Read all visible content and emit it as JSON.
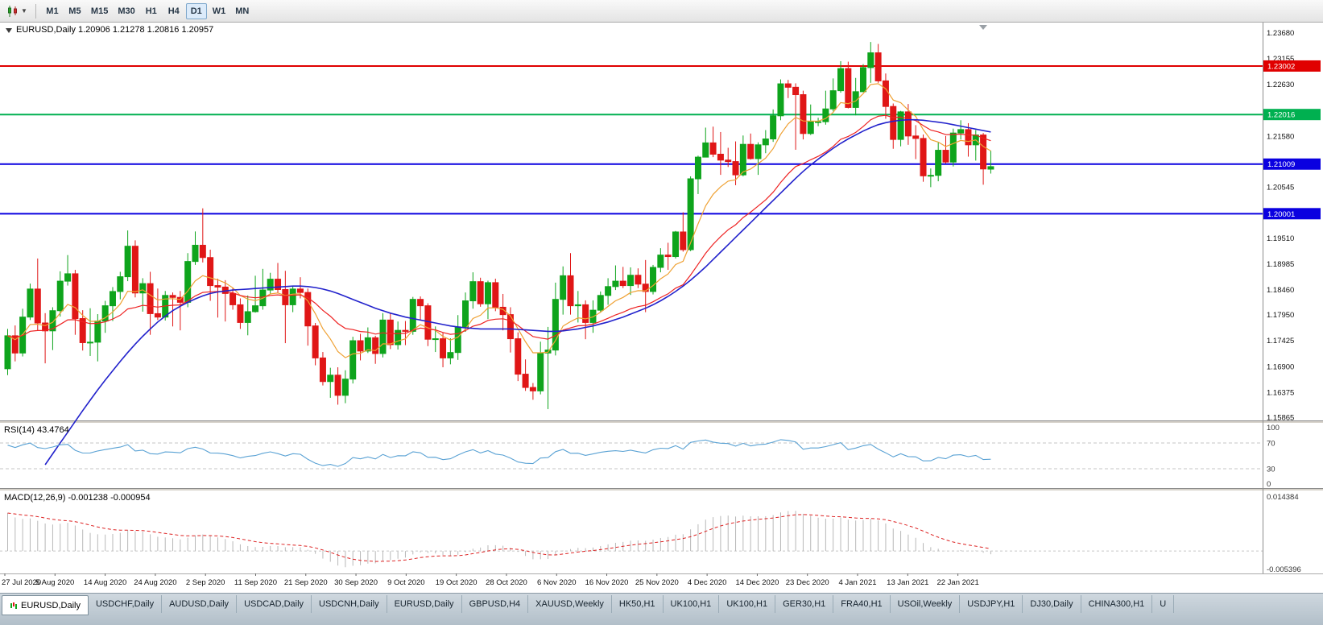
{
  "toolbar": {
    "chart_type_icon": "candlestick-chart",
    "timeframes": [
      "M1",
      "M5",
      "M15",
      "M30",
      "H1",
      "H4",
      "D1",
      "W1",
      "MN"
    ],
    "active_timeframe": "D1"
  },
  "main_chart": {
    "header": "EURUSD,Daily 1.20906 1.21278 1.20816 1.20957",
    "symbol": "EURUSD",
    "period": "Daily",
    "open": "1.20906",
    "high": "1.21278",
    "low": "1.20816",
    "close": "1.20957",
    "price_axis_labels": [
      "1.23680",
      "1.23155",
      "1.22630",
      "1.21580",
      "1.20545",
      "1.19510",
      "1.18985",
      "1.18460",
      "1.17950",
      "1.17425",
      "1.16900",
      "1.16375",
      "1.15865"
    ],
    "horizontal_lines": [
      {
        "label": "1.23002",
        "price": 1.23002,
        "color": "#e00000"
      },
      {
        "label": "1.22016",
        "price": 1.22016,
        "color": "#00b050"
      },
      {
        "label": "1.21009",
        "price": 1.21009,
        "color": "#0a00e0"
      },
      {
        "label": "1.20001",
        "price": 1.20001,
        "color": "#0a00e0"
      }
    ]
  },
  "rsi_panel": {
    "header": "RSI(14) 43.4764",
    "indicator": "RSI",
    "period": 14,
    "value": "43.4764",
    "axis_labels": [
      "100",
      "70",
      "30",
      "0"
    ],
    "levels": [
      70,
      30
    ],
    "line_color": "#5aa2d4"
  },
  "macd_panel": {
    "header": "MACD(12,26,9) -0.001238 -0.000954",
    "indicator": "MACD",
    "params": "12,26,9",
    "values": [
      "-0.001238",
      "-0.000954"
    ],
    "axis_max": "0.014384",
    "axis_min": "-0.005396"
  },
  "date_axis": [
    "27 Jul 2020",
    "5 Aug 2020",
    "14 Aug 2020",
    "24 Aug 2020",
    "2 Sep 2020",
    "11 Sep 2020",
    "21 Sep 2020",
    "30 Sep 2020",
    "9 Oct 2020",
    "19 Oct 2020",
    "28 Oct 2020",
    "6 Nov 2020",
    "16 Nov 2020",
    "25 Nov 2020",
    "4 Dec 2020",
    "14 Dec 2020",
    "23 Dec 2020",
    "4 Jan 2021",
    "13 Jan 2021",
    "22 Jan 2021"
  ],
  "chart_tabs": {
    "active_index": 0,
    "tabs": [
      "EURUSD,Daily",
      "USDCHF,Daily",
      "AUDUSD,Daily",
      "USDCAD,Daily",
      "USDCNH,Daily",
      "EURUSD,Daily",
      "GBPUSD,H4",
      "XAUUSD,Weekly",
      "HK50,H1",
      "UK100,H1",
      "UK100,H1",
      "GER30,H1",
      "FRA40,H1",
      "USOil,Weekly",
      "USDJPY,H1",
      "DJ30,Daily",
      "CHINA300,H1",
      "U"
    ]
  },
  "colors": {
    "bull": "#0ea41c",
    "bear": "#e01616",
    "ma_fast": "#efa133",
    "ma_mid": "#ee2222",
    "ma_slow": "#2222cc",
    "rsi_line": "#5aa2d4",
    "macd_hist": "#b8b8b8",
    "macd_signal": "#dd2222",
    "hline_red": "#e00000",
    "hline_green": "#00b050",
    "hline_blue": "#0a00e0"
  },
  "chart_data": {
    "type": "candlestick",
    "title": "EURUSD Daily",
    "price_axis_top": 1.23885,
    "price_axis_bottom": 1.158,
    "macd_axis_max": 0.014384,
    "macd_axis_min": -0.005396,
    "ohlc": [
      [
        1.1685,
        1.1766,
        1.1672,
        1.1752
      ],
      [
        1.1752,
        1.1773,
        1.17,
        1.1717
      ],
      [
        1.1717,
        1.1807,
        1.171,
        1.179
      ],
      [
        1.179,
        1.1858,
        1.1784,
        1.1847
      ],
      [
        1.1847,
        1.1909,
        1.1762,
        1.1778
      ],
      [
        1.1778,
        1.1798,
        1.1696,
        1.1762
      ],
      [
        1.1762,
        1.181,
        1.1723,
        1.1803
      ],
      [
        1.1803,
        1.1883,
        1.1791,
        1.1863
      ],
      [
        1.1863,
        1.1916,
        1.1854,
        1.1878
      ],
      [
        1.1878,
        1.1886,
        1.1754,
        1.1787
      ],
      [
        1.1787,
        1.1804,
        1.1722,
        1.1738
      ],
      [
        1.1738,
        1.1808,
        1.1711,
        1.1739
      ],
      [
        1.1739,
        1.1796,
        1.17,
        1.1782
      ],
      [
        1.1782,
        1.1823,
        1.1758,
        1.1813
      ],
      [
        1.1813,
        1.1851,
        1.1782,
        1.1842
      ],
      [
        1.1842,
        1.1882,
        1.1826,
        1.1872
      ],
      [
        1.1872,
        1.1966,
        1.1863,
        1.1934
      ],
      [
        1.1934,
        1.1946,
        1.183,
        1.1839
      ],
      [
        1.1839,
        1.1869,
        1.1801,
        1.1858
      ],
      [
        1.1858,
        1.1882,
        1.1754,
        1.1797
      ],
      [
        1.1797,
        1.1848,
        1.1784,
        1.179
      ],
      [
        1.179,
        1.1843,
        1.1783,
        1.1834
      ],
      [
        1.1834,
        1.184,
        1.1771,
        1.183
      ],
      [
        1.183,
        1.1843,
        1.1763,
        1.182
      ],
      [
        1.182,
        1.192,
        1.181,
        1.1903
      ],
      [
        1.1903,
        1.1964,
        1.1896,
        1.1936
      ],
      [
        1.1936,
        1.2011,
        1.1901,
        1.1911
      ],
      [
        1.1911,
        1.1927,
        1.1823,
        1.1854
      ],
      [
        1.1854,
        1.1868,
        1.1789,
        1.1851
      ],
      [
        1.1851,
        1.1865,
        1.1781,
        1.1838
      ],
      [
        1.1838,
        1.185,
        1.1805,
        1.1815
      ],
      [
        1.1815,
        1.1828,
        1.1766,
        1.1779
      ],
      [
        1.1779,
        1.1834,
        1.1753,
        1.1801
      ],
      [
        1.1801,
        1.1874,
        1.1799,
        1.1813
      ],
      [
        1.1813,
        1.1888,
        1.1805,
        1.1845
      ],
      [
        1.1845,
        1.188,
        1.1836,
        1.1867
      ],
      [
        1.1867,
        1.19,
        1.1838,
        1.1846
      ],
      [
        1.1846,
        1.1884,
        1.1737,
        1.1815
      ],
      [
        1.1815,
        1.1852,
        1.18,
        1.1847
      ],
      [
        1.1847,
        1.1871,
        1.1828,
        1.184
      ],
      [
        1.184,
        1.1848,
        1.1732,
        1.1772
      ],
      [
        1.1772,
        1.1778,
        1.1692,
        1.1707
      ],
      [
        1.1707,
        1.1719,
        1.1651,
        1.1659
      ],
      [
        1.1659,
        1.1687,
        1.1626,
        1.1672
      ],
      [
        1.1672,
        1.1688,
        1.1612,
        1.1631
      ],
      [
        1.1631,
        1.1682,
        1.1615,
        1.1664
      ],
      [
        1.1664,
        1.175,
        1.1655,
        1.1742
      ],
      [
        1.1742,
        1.1756,
        1.1702,
        1.1721
      ],
      [
        1.1721,
        1.1769,
        1.1717,
        1.1748
      ],
      [
        1.1748,
        1.1752,
        1.1695,
        1.1716
      ],
      [
        1.1716,
        1.1798,
        1.1708,
        1.1784
      ],
      [
        1.1784,
        1.1798,
        1.1725,
        1.1734
      ],
      [
        1.1734,
        1.1781,
        1.1724,
        1.1763
      ],
      [
        1.1763,
        1.1782,
        1.1733,
        1.1761
      ],
      [
        1.1761,
        1.1831,
        1.1754,
        1.1826
      ],
      [
        1.1826,
        1.1832,
        1.1785,
        1.1813
      ],
      [
        1.1813,
        1.1818,
        1.1731,
        1.1745
      ],
      [
        1.1745,
        1.1771,
        1.1719,
        1.1746
      ],
      [
        1.1746,
        1.1758,
        1.1688,
        1.1707
      ],
      [
        1.1707,
        1.1747,
        1.1694,
        1.1718
      ],
      [
        1.1718,
        1.1794,
        1.1703,
        1.177
      ],
      [
        1.177,
        1.184,
        1.176,
        1.1823
      ],
      [
        1.1823,
        1.1881,
        1.1807,
        1.1862
      ],
      [
        1.1862,
        1.187,
        1.1811,
        1.1817
      ],
      [
        1.1817,
        1.1864,
        1.1786,
        1.186
      ],
      [
        1.186,
        1.1868,
        1.1802,
        1.181
      ],
      [
        1.181,
        1.1837,
        1.1763,
        1.1795
      ],
      [
        1.1795,
        1.181,
        1.1718,
        1.1746
      ],
      [
        1.1746,
        1.1759,
        1.166,
        1.1674
      ],
      [
        1.1674,
        1.1704,
        1.164,
        1.1647
      ],
      [
        1.1647,
        1.1656,
        1.1622,
        1.164
      ],
      [
        1.164,
        1.174,
        1.1633,
        1.1717
      ],
      [
        1.1717,
        1.177,
        1.1603,
        1.1723
      ],
      [
        1.1723,
        1.186,
        1.1712,
        1.1826
      ],
      [
        1.1826,
        1.1893,
        1.1795,
        1.1874
      ],
      [
        1.1874,
        1.192,
        1.1795,
        1.1813
      ],
      [
        1.1813,
        1.1843,
        1.1779,
        1.1815
      ],
      [
        1.1815,
        1.1824,
        1.1745,
        1.1779
      ],
      [
        1.1779,
        1.1824,
        1.1758,
        1.1804
      ],
      [
        1.1804,
        1.1842,
        1.1799,
        1.1834
      ],
      [
        1.1834,
        1.1869,
        1.1815,
        1.1852
      ],
      [
        1.1852,
        1.1895,
        1.1845,
        1.1863
      ],
      [
        1.1863,
        1.1892,
        1.1849,
        1.1854
      ],
      [
        1.1854,
        1.1891,
        1.1835,
        1.1875
      ],
      [
        1.1875,
        1.1889,
        1.1849,
        1.1857
      ],
      [
        1.1857,
        1.1906,
        1.18,
        1.1842
      ],
      [
        1.1842,
        1.1896,
        1.1836,
        1.1891
      ],
      [
        1.1891,
        1.193,
        1.1881,
        1.1916
      ],
      [
        1.1916,
        1.1941,
        1.1886,
        1.1913
      ],
      [
        1.1913,
        1.1965,
        1.1909,
        1.1963
      ],
      [
        1.1963,
        1.2003,
        1.1923,
        1.1927
      ],
      [
        1.1927,
        1.2076,
        1.1924,
        1.2071
      ],
      [
        1.2071,
        1.2118,
        1.204,
        1.2115
      ],
      [
        1.2115,
        1.2175,
        1.2115,
        1.2144
      ],
      [
        1.2144,
        1.2177,
        1.2115,
        1.2121
      ],
      [
        1.2121,
        1.2166,
        1.2079,
        1.2109
      ],
      [
        1.2109,
        1.2134,
        1.2095,
        1.2106
      ],
      [
        1.2106,
        1.2147,
        1.2058,
        1.2079
      ],
      [
        1.2079,
        1.2159,
        1.2076,
        1.2141
      ],
      [
        1.2141,
        1.2163,
        1.211,
        1.2112
      ],
      [
        1.2112,
        1.2145,
        1.2079,
        1.214
      ],
      [
        1.214,
        1.217,
        1.2123,
        1.2152
      ],
      [
        1.2152,
        1.2212,
        1.2146,
        1.2199
      ],
      [
        1.2199,
        1.2273,
        1.219,
        1.2264
      ],
      [
        1.2264,
        1.2272,
        1.2235,
        1.2257
      ],
      [
        1.2257,
        1.2265,
        1.213,
        1.2242
      ],
      [
        1.2242,
        1.225,
        1.2151,
        1.2163
      ],
      [
        1.2163,
        1.2222,
        1.216,
        1.2187
      ],
      [
        1.2187,
        1.2195,
        1.2178,
        1.2187
      ],
      [
        1.2187,
        1.225,
        1.2181,
        1.2213
      ],
      [
        1.2213,
        1.2275,
        1.2208,
        1.225
      ],
      [
        1.225,
        1.231,
        1.2246,
        1.2295
      ],
      [
        1.2295,
        1.2309,
        1.2214,
        1.2216
      ],
      [
        1.2216,
        1.2276,
        1.22,
        1.2248
      ],
      [
        1.2248,
        1.2304,
        1.2247,
        1.2297
      ],
      [
        1.2297,
        1.2349,
        1.2266,
        1.2327
      ],
      [
        1.2327,
        1.2345,
        1.2266,
        1.227
      ],
      [
        1.227,
        1.2285,
        1.2193,
        1.2218
      ],
      [
        1.2218,
        1.2224,
        1.2132,
        1.2151
      ],
      [
        1.2151,
        1.2209,
        1.2137,
        1.2207
      ],
      [
        1.2207,
        1.2223,
        1.214,
        1.2158
      ],
      [
        1.2158,
        1.218,
        1.2111,
        1.2153
      ],
      [
        1.2153,
        1.2161,
        1.2065,
        1.2077
      ],
      [
        1.2077,
        1.2092,
        1.2054,
        1.2078
      ],
      [
        1.2078,
        1.2145,
        1.2066,
        1.2129
      ],
      [
        1.2129,
        1.2158,
        1.2102,
        1.2105
      ],
      [
        1.2105,
        1.2173,
        1.2096,
        1.2164
      ],
      [
        1.2164,
        1.219,
        1.2151,
        1.2171
      ],
      [
        1.2171,
        1.2184,
        1.2116,
        1.214
      ],
      [
        1.214,
        1.217,
        1.2108,
        1.216
      ],
      [
        1.216,
        1.2164,
        1.2059,
        1.2091
      ],
      [
        1.20906,
        1.21278,
        1.20816,
        1.20957
      ]
    ],
    "ma_blue": [
      null,
      null,
      null,
      null,
      null,
      1.149,
      1.1512,
      1.1534,
      1.1556,
      1.1578,
      1.16,
      1.1621,
      1.1642,
      1.1662,
      1.1681,
      1.17,
      1.1718,
      1.1735,
      1.1751,
      1.1766,
      1.178,
      1.1792,
      1.1803,
      1.1812,
      1.182,
      1.1827,
      1.1833,
      1.1838,
      1.1841,
      1.1843,
      1.1845,
      1.1846,
      1.1847,
      1.1848,
      1.1849,
      1.185,
      1.1851,
      1.1852,
      1.1853,
      1.1853,
      1.1852,
      1.185,
      1.1847,
      1.1843,
      1.1838,
      1.1832,
      1.1826,
      1.182,
      1.1814,
      1.1808,
      1.1803,
      1.1798,
      1.1794,
      1.179,
      1.1787,
      1.1784,
      1.1781,
      1.1778,
      1.1775,
      1.1772,
      1.177,
      1.1768,
      1.1767,
      1.1766,
      1.1766,
      1.1766,
      1.1766,
      1.1766,
      1.1765,
      1.1764,
      1.1763,
      1.1762,
      1.1761,
      1.1761,
      1.1762,
      1.1764,
      1.1766,
      1.1769,
      1.1772,
      1.1776,
      1.178,
      1.1785,
      1.179,
      1.1796,
      1.1802,
      1.1808,
      1.1815,
      1.1823,
      1.1832,
      1.1842,
      1.1853,
      1.1865,
      1.1878,
      1.1892,
      1.1907,
      1.1922,
      1.1937,
      1.1952,
      1.1967,
      1.1982,
      1.1997,
      1.2012,
      1.2027,
      1.2042,
      1.2057,
      1.2072,
      1.2086,
      1.2099,
      1.2111,
      1.2122,
      1.2133,
      1.2143,
      1.2152,
      1.216,
      1.2168,
      1.2175,
      1.2181,
      1.2185,
      1.2188,
      1.219,
      1.2191,
      1.2191,
      1.219,
      1.2188,
      1.2186,
      1.2184,
      1.2181,
      1.2178,
      1.2175,
      1.2172,
      1.2169,
      1.2166
    ],
    "indicators": [
      {
        "name": "RSI",
        "period": 14,
        "last_value": 43.4764
      },
      {
        "name": "MACD",
        "fast": 12,
        "slow": 26,
        "signal": 9,
        "last_macd": -0.001238,
        "last_signal": -0.000954
      }
    ]
  }
}
